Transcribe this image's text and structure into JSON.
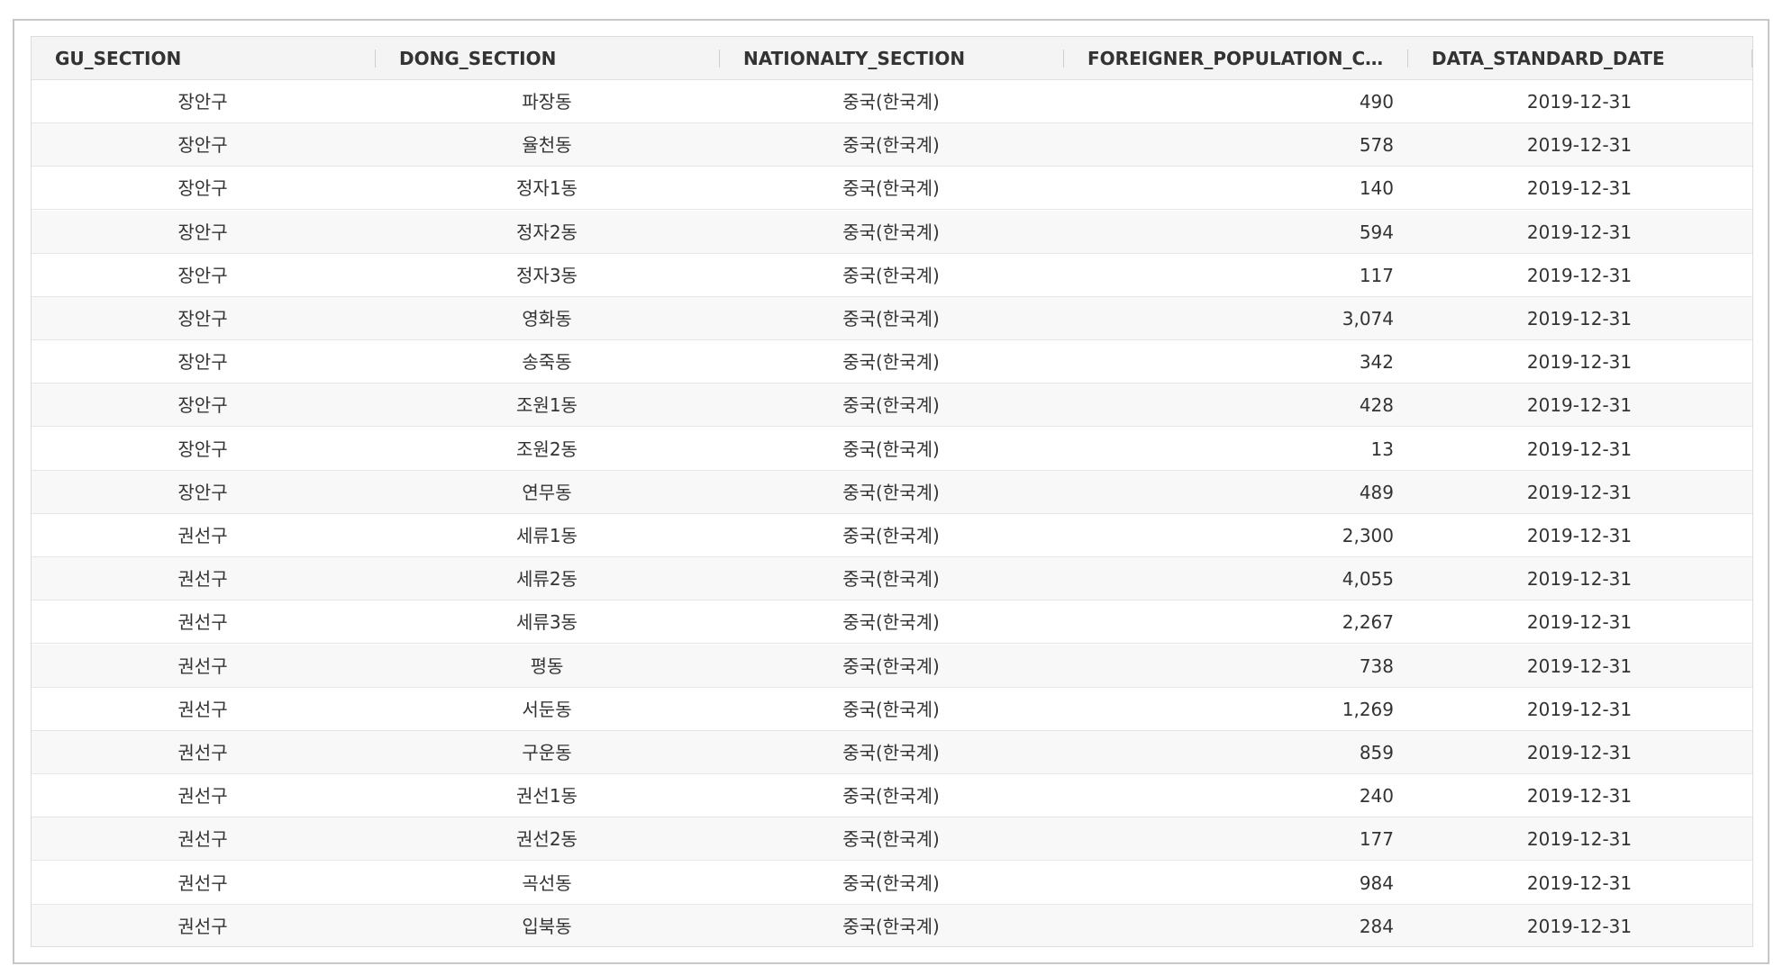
{
  "table": {
    "columns": [
      "GU_SECTION",
      "DONG_SECTION",
      "NATIONALTY_SECTION",
      "FOREIGNER_POPULATION_CO⋯",
      "DATA_STANDARD_DATE"
    ],
    "rows": [
      [
        "장안구",
        "파장동",
        "중국(한국계)",
        "490",
        "2019-12-31"
      ],
      [
        "장안구",
        "율천동",
        "중국(한국계)",
        "578",
        "2019-12-31"
      ],
      [
        "장안구",
        "정자1동",
        "중국(한국계)",
        "140",
        "2019-12-31"
      ],
      [
        "장안구",
        "정자2동",
        "중국(한국계)",
        "594",
        "2019-12-31"
      ],
      [
        "장안구",
        "정자3동",
        "중국(한국계)",
        "117",
        "2019-12-31"
      ],
      [
        "장안구",
        "영화동",
        "중국(한국계)",
        "3,074",
        "2019-12-31"
      ],
      [
        "장안구",
        "송죽동",
        "중국(한국계)",
        "342",
        "2019-12-31"
      ],
      [
        "장안구",
        "조원1동",
        "중국(한국계)",
        "428",
        "2019-12-31"
      ],
      [
        "장안구",
        "조원2동",
        "중국(한국계)",
        "13",
        "2019-12-31"
      ],
      [
        "장안구",
        "연무동",
        "중국(한국계)",
        "489",
        "2019-12-31"
      ],
      [
        "권선구",
        "세류1동",
        "중국(한국계)",
        "2,300",
        "2019-12-31"
      ],
      [
        "권선구",
        "세류2동",
        "중국(한국계)",
        "4,055",
        "2019-12-31"
      ],
      [
        "권선구",
        "세류3동",
        "중국(한국계)",
        "2,267",
        "2019-12-31"
      ],
      [
        "권선구",
        "평동",
        "중국(한국계)",
        "738",
        "2019-12-31"
      ],
      [
        "권선구",
        "서둔동",
        "중국(한국계)",
        "1,269",
        "2019-12-31"
      ],
      [
        "권선구",
        "구운동",
        "중국(한국계)",
        "859",
        "2019-12-31"
      ],
      [
        "권선구",
        "권선1동",
        "중국(한국계)",
        "240",
        "2019-12-31"
      ],
      [
        "권선구",
        "권선2동",
        "중국(한국계)",
        "177",
        "2019-12-31"
      ],
      [
        "권선구",
        "곡선동",
        "중국(한국계)",
        "984",
        "2019-12-31"
      ],
      [
        "권선구",
        "입북동",
        "중국(한국계)",
        "284",
        "2019-12-31"
      ]
    ]
  },
  "colors": {
    "header_bg": "#f4f4f4",
    "row_alt_bg": "#f8f8f8",
    "text": "#333333",
    "border": "#dcdcdc"
  }
}
